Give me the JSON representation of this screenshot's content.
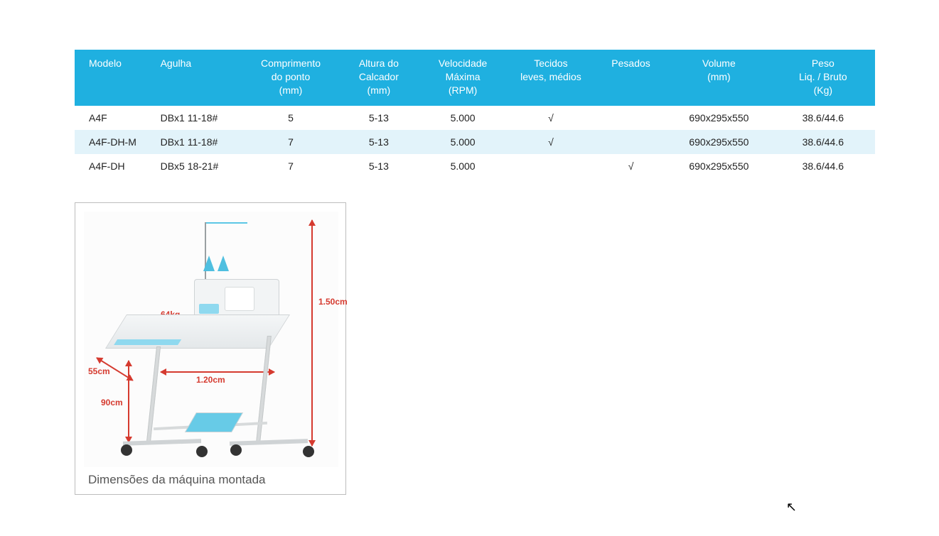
{
  "colors": {
    "header_bg": "#1fb0e0",
    "header_fg": "#ffffff",
    "row_alt_bg": "#e2f3fa",
    "dim_label": "#d53a2f"
  },
  "check_glyph": "√",
  "table": {
    "columns": [
      "Modelo",
      "Agulha",
      "Comprimento\ndo ponto\n(mm)",
      "Altura do\nCalcador\n(mm)",
      "Velocidade\nMáxima\n(RPM)",
      "Tecidos\nleves, médios",
      "Pesados",
      "Volume\n(mm)",
      "Peso\nLiq. / Bruto\n(Kg)"
    ],
    "col_widths_pct": [
      10,
      11,
      12,
      10,
      11,
      11,
      9,
      13,
      13
    ],
    "rows": [
      {
        "alt": false,
        "cells": [
          "A4F",
          "DBx1 11-18#",
          "5",
          "5-13",
          "5.000",
          "√",
          "",
          "690x295x550",
          "38.6/44.6"
        ]
      },
      {
        "alt": true,
        "cells": [
          "A4F-DH-M",
          "DBx1 11-18#",
          "7",
          "5-13",
          "5.000",
          "√",
          "",
          "690x295x550",
          "38.6/44.6"
        ]
      },
      {
        "alt": false,
        "cells": [
          "A4F-DH",
          "DBx5 18-21#",
          "7",
          "5-13",
          "5.000",
          "",
          "√",
          "690x295x550",
          "38.6/44.6"
        ]
      }
    ]
  },
  "diagram": {
    "caption": "Dimensões da máquina montada",
    "labels": {
      "height_total": "1.50cm",
      "table_length": "1.20cm",
      "table_depth": "55cm",
      "leg_height": "90cm",
      "weight": "64kg"
    }
  }
}
